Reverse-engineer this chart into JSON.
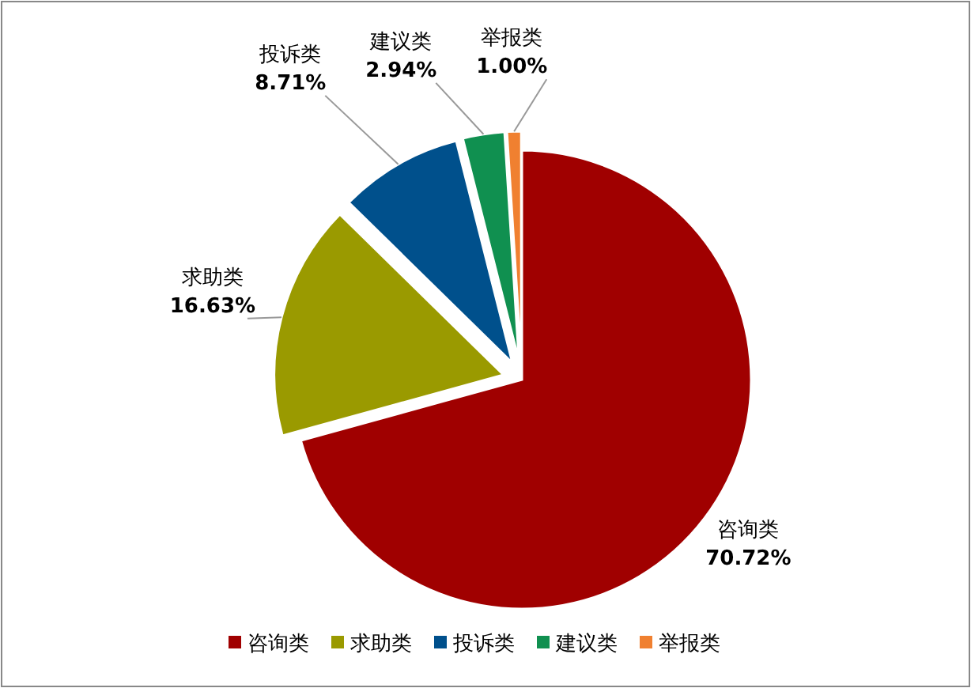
{
  "chart_data": {
    "type": "pie",
    "categories": [
      "咨询类",
      "求助类",
      "投诉类",
      "建议类",
      "举报类"
    ],
    "values": [
      70.72,
      16.63,
      8.71,
      2.94,
      1.0
    ],
    "colors": [
      "#a00000",
      "#9a9a00",
      "#00508c",
      "#109050",
      "#f08030"
    ],
    "value_labels": [
      "70.72%",
      "16.63%",
      "8.71%",
      "2.94%",
      "1.00%"
    ],
    "legend": "bottom"
  }
}
